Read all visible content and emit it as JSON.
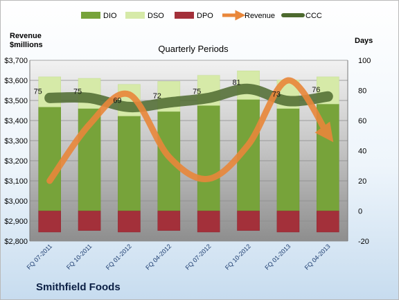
{
  "chart_data": {
    "type": "bar",
    "company": "Smithfield Foods",
    "subtitle": "Quarterly Periods",
    "y_left_label_line1": "Revenue",
    "y_left_label_line2": "$millions",
    "y_right_label": "Days",
    "categories": [
      "FQ 07-2011",
      "FQ 10-2011",
      "FQ 01-2012",
      "FQ 04-2012",
      "FQ 07-2012",
      "FQ 10-2012",
      "FQ 01-2013",
      "FQ 04-2013"
    ],
    "y_left": {
      "min": 2800,
      "max": 3700,
      "step": 100,
      "ticks": [
        "$2,800",
        "$2,900",
        "$3,000",
        "$3,100",
        "$3,200",
        "$3,300",
        "$3,400",
        "$3,500",
        "$3,600",
        "$3,700"
      ]
    },
    "y_right": {
      "min": -20,
      "max": 100,
      "step": 20,
      "ticks": [
        "-20",
        "0",
        "20",
        "40",
        "60",
        "80",
        "100"
      ]
    },
    "grid": true,
    "legend_position": "top",
    "series": [
      {
        "name": "DIO",
        "kind": "bar",
        "axis": "right",
        "color": "#77a33a",
        "values": [
          69,
          68,
          63,
          66,
          70,
          74,
          68,
          71
        ]
      },
      {
        "name": "DSO",
        "kind": "bar",
        "axis": "right",
        "color": "#d6eaa8",
        "values": [
          20,
          20,
          21,
          20,
          20,
          19,
          19,
          18
        ]
      },
      {
        "name": "DPO",
        "kind": "bar",
        "axis": "right",
        "color": "#a3303a",
        "values": [
          -14,
          -13,
          -14,
          -13,
          -14,
          -13,
          -14,
          -14
        ]
      },
      {
        "name": "Revenue",
        "kind": "line-arrow",
        "axis": "left",
        "color": "#e9873a",
        "values": [
          3100,
          3380,
          3530,
          3220,
          3110,
          3280,
          3600,
          3330
        ]
      },
      {
        "name": "CCC",
        "kind": "line",
        "axis": "right",
        "color": "#4d6a2f",
        "values": [
          75,
          75,
          69,
          72,
          75,
          81,
          73,
          76
        ],
        "labels": [
          "75",
          "75",
          "69",
          "72",
          "75",
          "81",
          "73",
          "76"
        ]
      }
    ]
  }
}
